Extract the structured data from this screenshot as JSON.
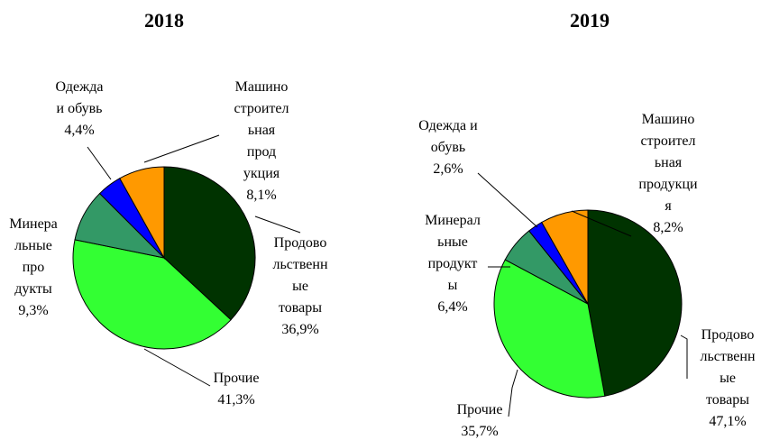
{
  "chart_data": [
    {
      "type": "pie",
      "title": "2018",
      "categories": [
        "Продово\nльственн\nые\nтовары",
        "Прочие",
        "Минера\nльные\nпро\nдукты",
        "Одежда\nи обувь",
        "Машино\nстроител\nьная\nпрод\nукция"
      ],
      "values": [
        36.9,
        41.3,
        9.3,
        4.4,
        8.1
      ],
      "value_labels": [
        "36,9%",
        "41,3%",
        "9,3%",
        "4,4%",
        "8,1%"
      ],
      "colors": [
        "#003300",
        "#33ff33",
        "#339966",
        "#0000ff",
        "#ff9900"
      ]
    },
    {
      "type": "pie",
      "title": "2019",
      "categories": [
        "Продово\nльственн\nые\nтовары",
        "Прочие",
        "Минерал\nьные\nпродукт\nы",
        "Одежда и\nобувь",
        "Машино\nстроител\nьная\nпродукци\nя"
      ],
      "values": [
        47.1,
        35.7,
        6.4,
        2.6,
        8.2
      ],
      "value_labels": [
        "47,1%",
        "35,7%",
        "6,4%",
        "2,6%",
        "8,2%"
      ],
      "colors": [
        "#003300",
        "#33ff33",
        "#339966",
        "#0000ff",
        "#ff9900"
      ]
    }
  ]
}
